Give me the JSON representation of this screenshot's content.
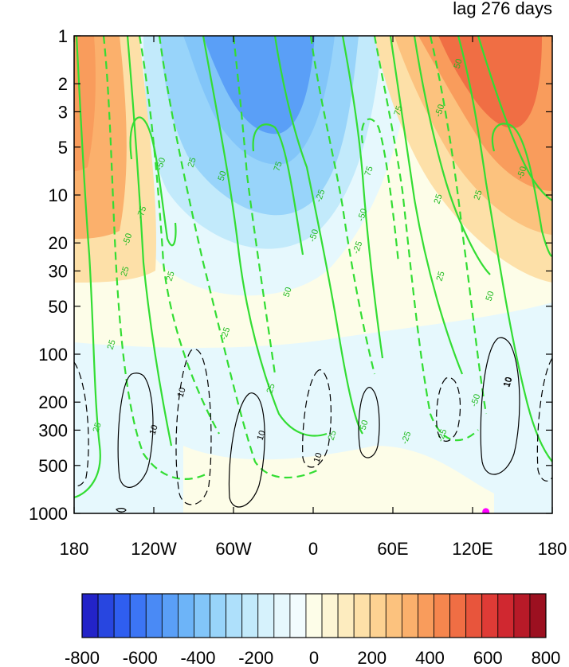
{
  "title_right": "lag 276 days",
  "chart_data": {
    "type": "heatmap",
    "title": "lag 276 days",
    "x_axis": {
      "scale": "longitude",
      "range": [
        -180,
        180
      ],
      "ticks": [
        -180,
        -120,
        -60,
        0,
        60,
        120,
        180
      ],
      "tick_labels": [
        "180",
        "120W",
        "60W",
        "0",
        "60E",
        "120E",
        "180"
      ]
    },
    "y_axis": {
      "scale": "log",
      "inverted": true,
      "range": [
        1,
        1000
      ],
      "ticks": [
        1,
        2,
        3,
        5,
        10,
        20,
        30,
        50,
        100,
        200,
        300,
        500,
        1000
      ],
      "tick_labels": [
        "1",
        "2",
        "3",
        "5",
        "10",
        "20",
        "30",
        "50",
        "100",
        "200",
        "300",
        "500",
        "1000"
      ]
    },
    "filled_field": {
      "colorbar_levels": [
        -800,
        -750,
        -700,
        -650,
        -600,
        -550,
        -500,
        -450,
        -400,
        -350,
        -300,
        -250,
        -200,
        -150,
        -100,
        -50,
        0,
        50,
        100,
        150,
        200,
        250,
        300,
        350,
        400,
        450,
        500,
        550,
        600,
        650,
        700,
        750,
        800
      ],
      "colorbar_labels": [
        "-800",
        "-600",
        "-400",
        "-200",
        "0",
        "200",
        "400",
        "600",
        "800"
      ],
      "colors": [
        "#2323c8",
        "#2846e0",
        "#2f5ef0",
        "#3c75f5",
        "#4a8af5",
        "#5a9ff7",
        "#6db4f8",
        "#82c5f9",
        "#98d4fa",
        "#aee0fb",
        "#c2eafb",
        "#d6f2fc",
        "#e6f8fd",
        "#f2fcfe",
        "#fdfde8",
        "#fdf5d4",
        "#fdecbf",
        "#fde0a8",
        "#fdd292",
        "#fcc27e",
        "#fbb06c",
        "#f99c5c",
        "#f6864e",
        "#f06e44",
        "#e8553c",
        "#df3b36",
        "#d02830",
        "#b81a28",
        "#9c1020"
      ],
      "features": [
        {
          "region": "stratosphere 60W-0",
          "sign": "negative",
          "peak": -475
        },
        {
          "region": "stratosphere 120E-180",
          "sign": "positive",
          "peak": 525
        },
        {
          "region": "stratosphere 180-150W",
          "sign": "positive",
          "peak": 275
        },
        {
          "region": "troposphere",
          "sign": "weak",
          "peak": 50
        }
      ]
    },
    "green_contours": {
      "style": "solid positive, dashed negative",
      "levels": [
        -75,
        -50,
        -25,
        25,
        50,
        75
      ],
      "labels": [
        "25",
        "-25",
        "-75",
        "-50",
        "25",
        "-50",
        "25",
        "25",
        "50",
        "75",
        "25",
        "50",
        "-50",
        "-25",
        "75",
        "-50",
        "-25",
        "25",
        "50",
        "75",
        "-25",
        "-50",
        "25",
        "25",
        "50",
        "-25",
        "-50",
        "25",
        "50",
        "-50",
        "25",
        "10"
      ]
    },
    "black_contours": {
      "style": "solid positive, dashed negative",
      "levels": [
        -10,
        10
      ],
      "labels": [
        "10",
        "10",
        "10",
        "10",
        "10"
      ]
    },
    "marker": {
      "lon": 130,
      "pressure": 850,
      "color": "#ff00ff"
    }
  }
}
